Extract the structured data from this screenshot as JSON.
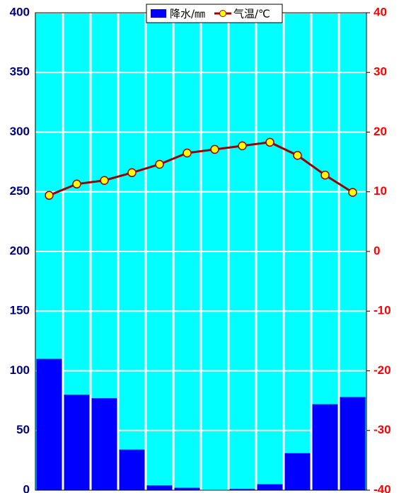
{
  "chart_data": {
    "type": "bar_line",
    "categories": [
      null,
      null,
      null,
      null,
      null,
      null,
      null,
      null,
      null,
      null,
      null,
      null
    ],
    "series": [
      {
        "name": "降水/㎜",
        "type": "bar",
        "color": "#0000ff",
        "values": [
          110,
          80,
          77,
          34,
          4,
          2,
          0,
          1,
          5,
          31,
          72,
          78
        ]
      },
      {
        "name": "气温/℃",
        "type": "line",
        "axis": "y2",
        "color": "#990000",
        "marker_color": "#ffff00",
        "values": [
          9.4,
          11.3,
          11.9,
          13.2,
          14.6,
          16.5,
          17.1,
          17.7,
          18.3,
          16.1,
          12.8,
          9.9
        ]
      }
    ],
    "ylim": [
      0,
      400
    ],
    "yticks": [
      0,
      50,
      100,
      150,
      200,
      250,
      300,
      350,
      400
    ],
    "y2lim": [
      -40,
      40
    ],
    "y2ticks": [
      -40,
      -30,
      -20,
      -10,
      0,
      10,
      20,
      30,
      40
    ],
    "grid": true,
    "plot_color": "#00ffff",
    "legend": "top"
  }
}
